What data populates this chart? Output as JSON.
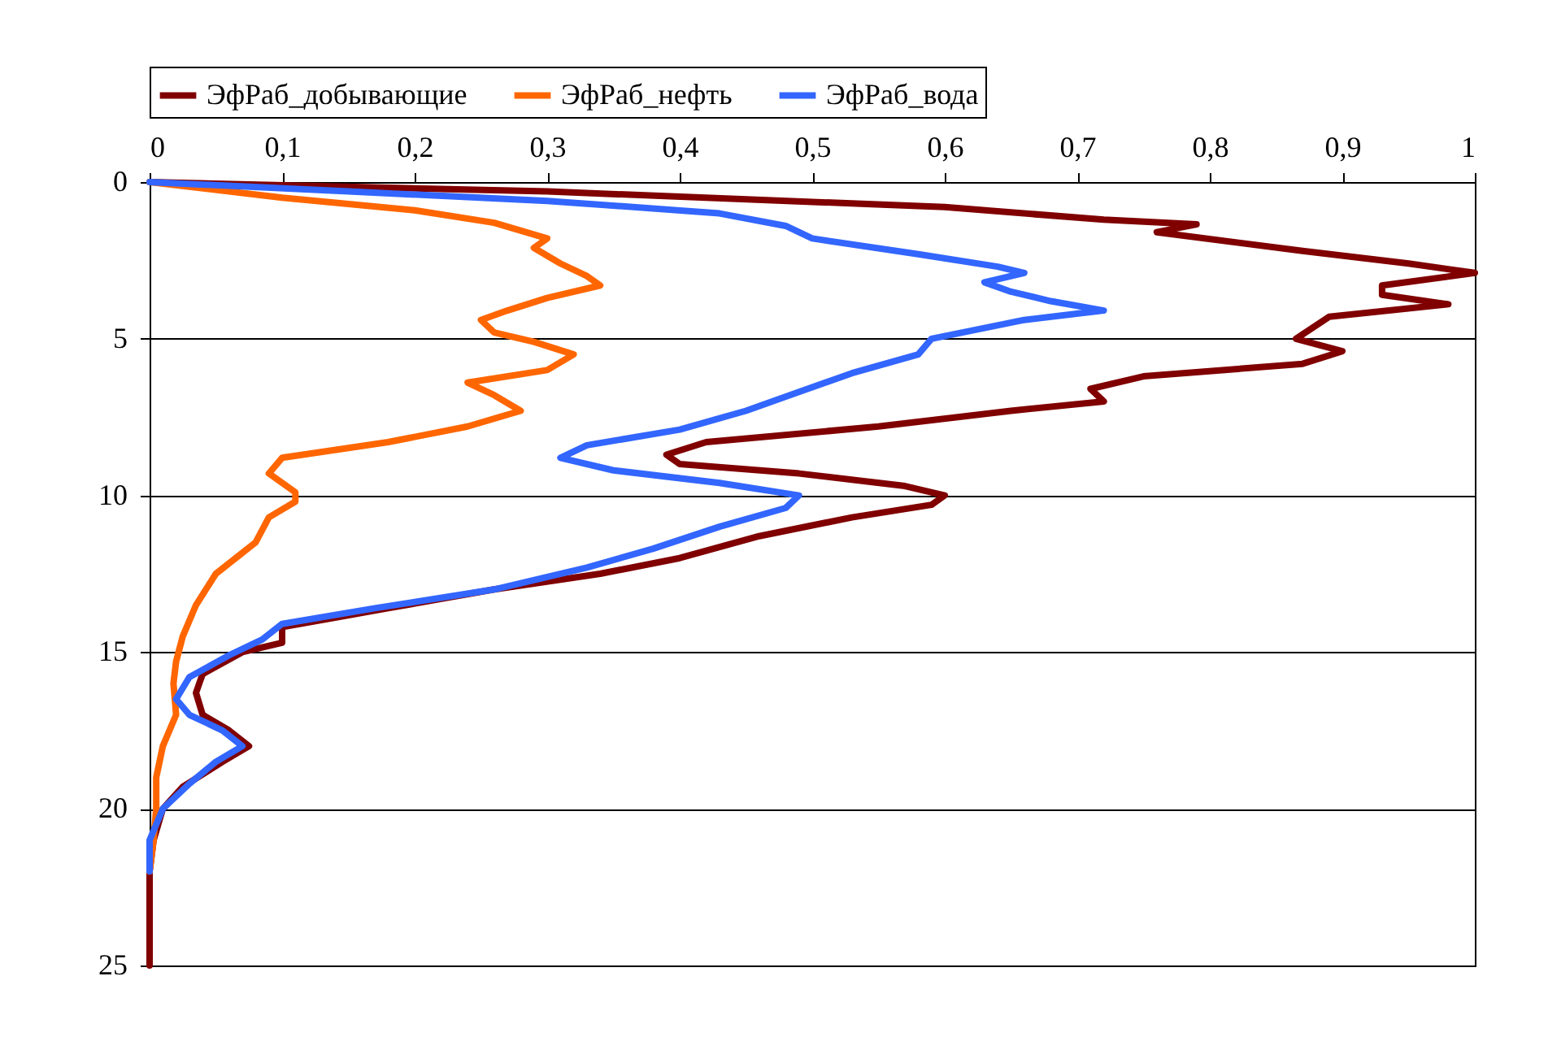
{
  "chart_data": {
    "type": "line",
    "series": [
      {
        "name": "ЭфРаб_добывающие",
        "color": "#800000",
        "x": [
          0,
          0.3,
          0.6,
          0.72,
          0.79,
          0.76,
          0.87,
          0.95,
          1.0,
          0.93,
          0.93,
          0.98,
          0.89,
          0.865,
          0.9,
          0.87,
          0.75,
          0.71,
          0.72,
          0.65,
          0.55,
          0.42,
          0.39,
          0.4,
          0.49,
          0.57,
          0.6,
          0.59,
          0.53,
          0.46,
          0.4,
          0.34,
          0.26,
          0.18,
          0.1,
          0.1,
          0.07,
          0.04,
          0.035,
          0.04,
          0.06,
          0.075,
          0.055,
          0.025,
          0.01,
          0.003,
          0,
          0
        ],
        "values": [
          0,
          0.3,
          0.8,
          1.2,
          1.35,
          1.6,
          2.2,
          2.6,
          2.9,
          3.3,
          3.6,
          3.9,
          4.3,
          5.0,
          5.4,
          5.8,
          6.2,
          6.6,
          7.0,
          7.3,
          7.8,
          8.3,
          8.7,
          9.0,
          9.3,
          9.7,
          10.0,
          10.3,
          10.7,
          11.3,
          12.0,
          12.5,
          13.0,
          13.6,
          14.2,
          14.7,
          15.0,
          15.7,
          16.3,
          17.0,
          17.5,
          18.0,
          18.5,
          19.3,
          20.0,
          21.0,
          22.0,
          25.0
        ]
      },
      {
        "name": "ЭфРаб_нефть",
        "color": "#ff6600",
        "x": [
          0,
          0.1,
          0.2,
          0.26,
          0.3,
          0.29,
          0.31,
          0.33,
          0.34,
          0.3,
          0.27,
          0.25,
          0.26,
          0.29,
          0.32,
          0.3,
          0.24,
          0.26,
          0.28,
          0.24,
          0.18,
          0.1,
          0.09,
          0.11,
          0.11,
          0.09,
          0.08,
          0.05,
          0.035,
          0.025,
          0.02,
          0.018,
          0.02,
          0.01,
          0.005,
          0.005,
          0.003,
          0
        ],
        "values": [
          0,
          0.5,
          0.9,
          1.3,
          1.8,
          2.1,
          2.6,
          3.0,
          3.3,
          3.7,
          4.1,
          4.4,
          4.8,
          5.1,
          5.5,
          6.0,
          6.4,
          6.8,
          7.3,
          7.8,
          8.3,
          8.8,
          9.3,
          9.9,
          10.2,
          10.7,
          11.5,
          12.5,
          13.5,
          14.5,
          15.3,
          16.0,
          17.0,
          18.0,
          19.0,
          20.0,
          21.0,
          22.0
        ]
      },
      {
        "name": "ЭфРаб_вода",
        "color": "#3366ff",
        "x": [
          0,
          0.15,
          0.3,
          0.43,
          0.48,
          0.49,
          0.5,
          0.58,
          0.64,
          0.66,
          0.63,
          0.65,
          0.68,
          0.72,
          0.66,
          0.59,
          0.58,
          0.53,
          0.49,
          0.45,
          0.4,
          0.33,
          0.31,
          0.35,
          0.43,
          0.49,
          0.48,
          0.43,
          0.38,
          0.33,
          0.26,
          0.17,
          0.1,
          0.085,
          0.06,
          0.03,
          0.02,
          0.03,
          0.055,
          0.07,
          0.05,
          0.03,
          0.01,
          0,
          0
        ],
        "values": [
          0,
          0.3,
          0.6,
          1.0,
          1.4,
          1.6,
          1.8,
          2.3,
          2.7,
          2.9,
          3.2,
          3.5,
          3.8,
          4.1,
          4.4,
          5.0,
          5.5,
          6.1,
          6.7,
          7.3,
          7.9,
          8.4,
          8.8,
          9.2,
          9.6,
          10.0,
          10.4,
          11.0,
          11.7,
          12.3,
          13.0,
          13.6,
          14.1,
          14.6,
          15.1,
          15.8,
          16.5,
          17.0,
          17.5,
          18.0,
          18.5,
          19.2,
          20.0,
          21.0,
          22.0
        ]
      }
    ],
    "xlim": [
      0,
      1
    ],
    "xticks": [
      0,
      {
        "value": 0.1,
        "label": "0,1"
      },
      {
        "value": 0.2,
        "label": "0,2"
      },
      {
        "value": 0.3,
        "label": "0,3"
      },
      {
        "value": 0.4,
        "label": "0,4"
      },
      {
        "value": 0.5,
        "label": "0,5"
      },
      {
        "value": 0.6,
        "label": "0,6"
      },
      {
        "value": 0.7,
        "label": "0,7"
      },
      {
        "value": 0.8,
        "label": "0,8"
      },
      {
        "value": 0.9,
        "label": "0,9"
      },
      1
    ],
    "ylim": [
      25,
      0
    ],
    "yticks": [
      0,
      5,
      10,
      15,
      20,
      25
    ],
    "grid": "y",
    "legend": "top",
    "marker": "none",
    "line_style": "solid"
  }
}
